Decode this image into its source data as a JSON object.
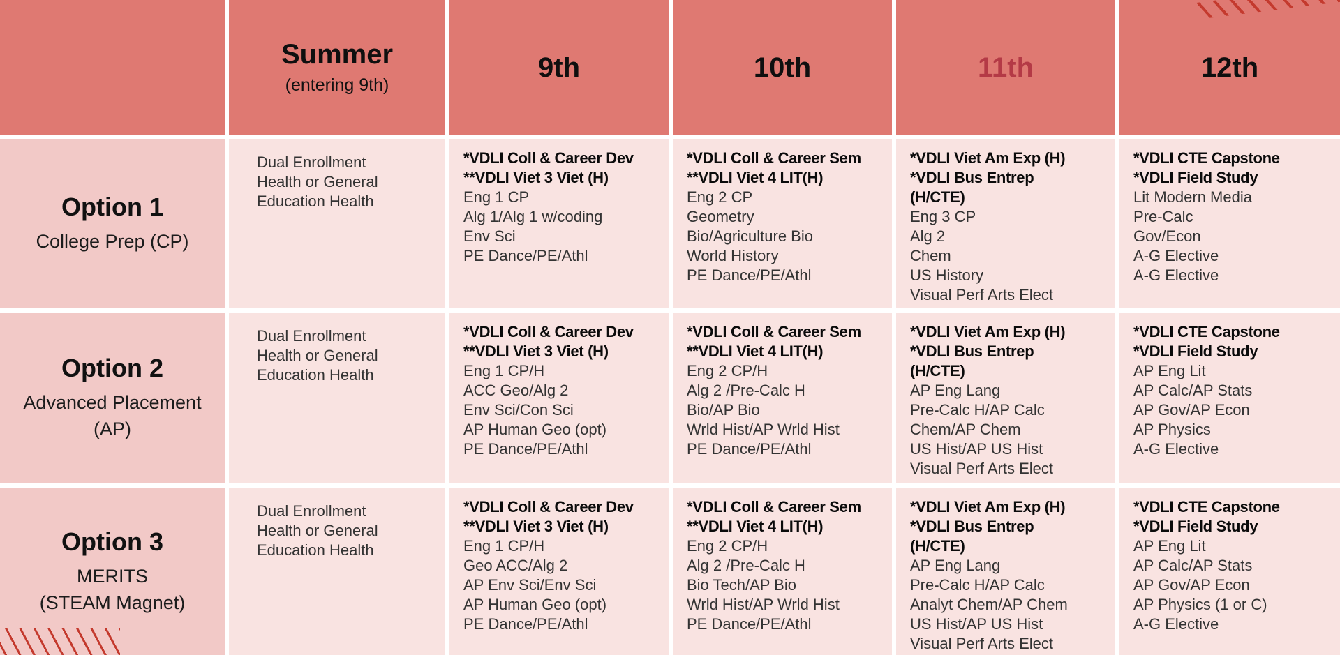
{
  "table": {
    "columns": [
      {
        "id": "blank",
        "label": ""
      },
      {
        "id": "summer",
        "label": "Summer",
        "sublabel": "(entering 9th)"
      },
      {
        "id": "9th",
        "label": "9th"
      },
      {
        "id": "10th",
        "label": "10th"
      },
      {
        "id": "11th",
        "label": "11th",
        "accent": true
      },
      {
        "id": "12th",
        "label": "12th"
      }
    ],
    "rows": [
      {
        "title": "Option 1",
        "subtitle_lines": [
          "College Prep (CP)"
        ],
        "cells": [
          {
            "lines": [
              {
                "t": "Dual Enrollment"
              },
              {
                "t": "Health or General"
              },
              {
                "t": "Education Health"
              }
            ]
          },
          {
            "lines": [
              {
                "t": "*VDLI Coll & Career Dev",
                "b": true
              },
              {
                "t": "**VDLI Viet 3 Viet (H)",
                "b": true
              },
              {
                "t": "Eng 1 CP"
              },
              {
                "t": "Alg 1/Alg 1 w/coding"
              },
              {
                "t": "Env Sci"
              },
              {
                "t": "PE Dance/PE/Athl"
              }
            ]
          },
          {
            "lines": [
              {
                "t": "*VDLI Coll & Career Sem",
                "b": true
              },
              {
                "t": "**VDLI Viet 4 LIT(H)",
                "b": true
              },
              {
                "t": "Eng 2 CP"
              },
              {
                "t": "Geometry"
              },
              {
                "t": "Bio/Agriculture Bio"
              },
              {
                "t": "World History"
              },
              {
                "t": "PE Dance/PE/Athl"
              }
            ]
          },
          {
            "lines": [
              {
                "t": "*VDLI Viet Am Exp (H)",
                "b": true
              },
              {
                "t": "*VDLI Bus Entrep",
                "b": true
              },
              {
                "t": "(H/CTE)",
                "b": true
              },
              {
                "t": "Eng 3 CP"
              },
              {
                "t": "Alg 2"
              },
              {
                "t": "Chem"
              },
              {
                "t": "US History"
              },
              {
                "t": "Visual Perf Arts Elect"
              }
            ]
          },
          {
            "lines": [
              {
                "t": "*VDLI CTE Capstone",
                "b": true
              },
              {
                "t": "*VDLI Field Study",
                "b": true
              },
              {
                "t": "Lit Modern Media"
              },
              {
                "t": "Pre-Calc"
              },
              {
                "t": "Gov/Econ"
              },
              {
                "t": "A-G Elective"
              },
              {
                "t": "A-G Elective"
              }
            ]
          }
        ]
      },
      {
        "title": "Option 2",
        "subtitle_lines": [
          "Advanced Placement",
          "(AP)"
        ],
        "cells": [
          {
            "lines": [
              {
                "t": "Dual Enrollment"
              },
              {
                "t": "Health or General"
              },
              {
                "t": "Education Health"
              }
            ]
          },
          {
            "lines": [
              {
                "t": "*VDLI Coll & Career Dev",
                "b": true
              },
              {
                "t": "**VDLI Viet 3 Viet (H)",
                "b": true
              },
              {
                "t": "Eng 1 CP/H"
              },
              {
                "t": "ACC Geo/Alg 2"
              },
              {
                "t": "Env Sci/Con Sci"
              },
              {
                "t": "AP Human Geo (opt)"
              },
              {
                "t": "PE Dance/PE/Athl"
              }
            ]
          },
          {
            "lines": [
              {
                "t": "*VDLI Coll & Career Sem",
                "b": true
              },
              {
                "t": "**VDLI Viet 4 LIT(H)",
                "b": true
              },
              {
                "t": "Eng 2 CP/H"
              },
              {
                "t": "Alg 2 /Pre-Calc H"
              },
              {
                "t": "Bio/AP Bio"
              },
              {
                "t": "Wrld Hist/AP Wrld Hist"
              },
              {
                "t": "PE Dance/PE/Athl"
              }
            ]
          },
          {
            "lines": [
              {
                "t": "*VDLI Viet Am Exp (H)",
                "b": true
              },
              {
                "t": "*VDLI Bus Entrep",
                "b": true
              },
              {
                "t": "(H/CTE)",
                "b": true
              },
              {
                "t": "AP Eng Lang"
              },
              {
                "t": "Pre-Calc H/AP Calc"
              },
              {
                "t": "Chem/AP Chem"
              },
              {
                "t": "US Hist/AP US Hist"
              },
              {
                "t": "Visual Perf Arts Elect"
              }
            ]
          },
          {
            "lines": [
              {
                "t": "*VDLI CTE Capstone",
                "b": true
              },
              {
                "t": "*VDLI Field Study",
                "b": true
              },
              {
                "t": "AP Eng Lit"
              },
              {
                "t": "AP Calc/AP Stats"
              },
              {
                "t": "AP Gov/AP Econ"
              },
              {
                "t": "AP Physics"
              },
              {
                "t": "A-G Elective"
              }
            ]
          }
        ]
      },
      {
        "title": "Option 3",
        "subtitle_lines": [
          "MERITS",
          "(STEAM Magnet)"
        ],
        "cells": [
          {
            "lines": [
              {
                "t": "Dual Enrollment"
              },
              {
                "t": "Health or General"
              },
              {
                "t": "Education Health"
              }
            ]
          },
          {
            "lines": [
              {
                "t": "*VDLI Coll & Career Dev",
                "b": true
              },
              {
                "t": "**VDLI Viet 3 Viet (H)",
                "b": true
              },
              {
                "t": "Eng 1 CP/H"
              },
              {
                "t": "Geo ACC/Alg 2"
              },
              {
                "t": "AP Env Sci/Env Sci"
              },
              {
                "t": "AP Human Geo (opt)"
              },
              {
                "t": "PE Dance/PE/Athl"
              }
            ]
          },
          {
            "lines": [
              {
                "t": "*VDLI Coll & Career Sem",
                "b": true
              },
              {
                "t": "**VDLI Viet 4 LIT(H)",
                "b": true
              },
              {
                "t": "Eng 2 CP/H"
              },
              {
                "t": "Alg 2 /Pre-Calc H"
              },
              {
                "t": "Bio Tech/AP Bio"
              },
              {
                "t": "Wrld Hist/AP Wrld Hist"
              },
              {
                "t": "PE Dance/PE/Athl"
              }
            ]
          },
          {
            "lines": [
              {
                "t": "*VDLI Viet Am Exp (H)",
                "b": true
              },
              {
                "t": "*VDLI Bus Entrep",
                "b": true
              },
              {
                "t": "(H/CTE)",
                "b": true
              },
              {
                "t": "AP Eng Lang"
              },
              {
                "t": "Pre-Calc H/AP Calc"
              },
              {
                "t": "Analyt Chem/AP Chem"
              },
              {
                "t": "US Hist/AP US Hist"
              },
              {
                "t": "Visual Perf Arts Elect"
              }
            ]
          },
          {
            "lines": [
              {
                "t": "*VDLI CTE Capstone",
                "b": true
              },
              {
                "t": "*VDLI Field Study",
                "b": true
              },
              {
                "t": "AP Eng Lit"
              },
              {
                "t": "AP Calc/AP Stats"
              },
              {
                "t": "AP Gov/AP Econ"
              },
              {
                "t": "AP Physics (1 or C)"
              },
              {
                "t": "A-G Elective"
              }
            ]
          }
        ]
      }
    ]
  },
  "colors": {
    "header_bg": "#df7972",
    "row_label_bg": "#f2c9c7",
    "cell_bg": "#f9e3e1",
    "accent_header_text": "#b43a46",
    "hatch_red": "#c43a2e",
    "gap": "#ffffff"
  }
}
